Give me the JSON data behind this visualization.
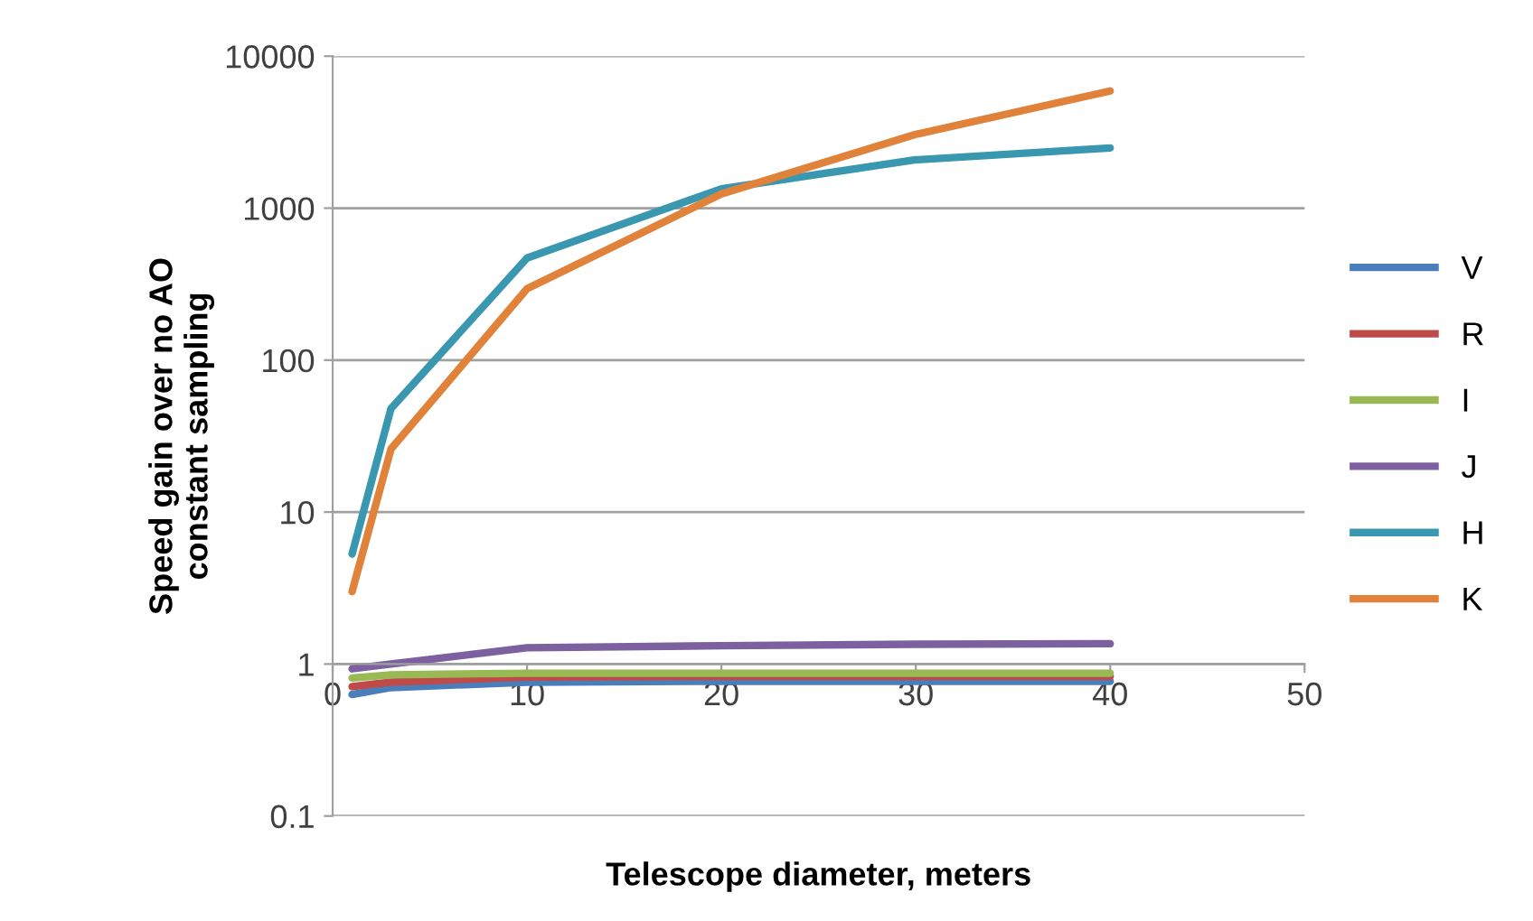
{
  "chart_data": {
    "type": "line",
    "xlabel": "Telescope diameter, meters",
    "ylabel": "Speed gain over no AO\nconstant sampling",
    "x": [
      1,
      3,
      10,
      20,
      30,
      40
    ],
    "series": [
      {
        "name": "V",
        "color": "#4a7ebb",
        "values": [
          0.63,
          0.7,
          0.76,
          0.77,
          0.77,
          0.77
        ]
      },
      {
        "name": "R",
        "color": "#be4b48",
        "values": [
          0.71,
          0.76,
          0.82,
          0.83,
          0.83,
          0.83
        ]
      },
      {
        "name": "I",
        "color": "#98b954",
        "values": [
          0.81,
          0.85,
          0.87,
          0.87,
          0.87,
          0.87
        ]
      },
      {
        "name": "J",
        "color": "#7d60a0",
        "values": [
          0.93,
          1.0,
          1.28,
          1.32,
          1.35,
          1.36
        ]
      },
      {
        "name": "H",
        "color": "#3a97b0",
        "values": [
          5.3,
          48,
          470,
          1340,
          2080,
          2490
        ]
      },
      {
        "name": "K",
        "color": "#e0823a",
        "values": [
          3.0,
          26,
          295,
          1240,
          3060,
          5900
        ]
      }
    ],
    "log": "y",
    "xlim": [
      0,
      50
    ],
    "xticks": [
      0,
      10,
      20,
      30,
      40,
      50
    ],
    "ylim": [
      0.1,
      10000
    ],
    "yticks": [
      0.1,
      1,
      10,
      100,
      1000,
      10000
    ],
    "grid": "y",
    "legend": "right",
    "marker": "none",
    "line_style": "solid"
  }
}
